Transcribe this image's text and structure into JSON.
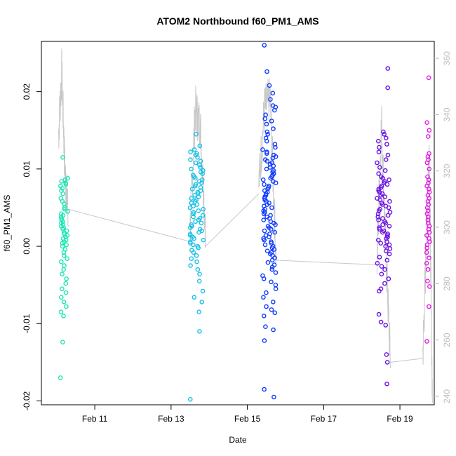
{
  "chart_data": {
    "type": "scatter",
    "title": "ATOM2 Northbound f60_PM1_AMS",
    "xlabel": "Date",
    "ylabel": "f60_PM1_AMS",
    "x_axis": {
      "range_days": [
        9.6,
        19.9
      ],
      "ticks": [
        {
          "day": 11,
          "label": "Feb 11"
        },
        {
          "day": 13,
          "label": "Feb 13"
        },
        {
          "day": 15,
          "label": "Feb 15"
        },
        {
          "day": 17,
          "label": "Feb 17"
        },
        {
          "day": 19,
          "label": "Feb 19"
        }
      ]
    },
    "y_left": {
      "range": [
        -0.0205,
        0.0265
      ],
      "ticks": [
        {
          "value": -0.02,
          "label": "-0.02"
        },
        {
          "value": -0.01,
          "label": "-0.01"
        },
        {
          "value": 0.0,
          "label": "0.00"
        },
        {
          "value": 0.01,
          "label": "0.01"
        },
        {
          "value": 0.02,
          "label": "0.02"
        }
      ]
    },
    "y_right": {
      "color": "#bdbdbd",
      "range": [
        237,
        366
      ],
      "ticks": [
        {
          "value": 240,
          "label": "240"
        },
        {
          "value": 260,
          "label": "260"
        },
        {
          "value": 280,
          "label": "280"
        },
        {
          "value": 300,
          "label": "300"
        },
        {
          "value": 320,
          "label": "320"
        },
        {
          "value": 340,
          "label": "340"
        },
        {
          "value": 360,
          "label": "360"
        }
      ]
    },
    "grid": false,
    "legend": "none",
    "marker": "open-circle",
    "line_color": "#c8c8c8",
    "point_groups": [
      {
        "color": "#1ee6b4",
        "x_span": [
          10.1,
          10.3
        ],
        "points": [
          0.0115,
          0.0088,
          0.0086,
          0.0084,
          0.0082,
          0.008,
          0.0078,
          0.0075,
          0.0072,
          0.0068,
          0.0062,
          0.0058,
          0.0055,
          0.005,
          0.0048,
          0.0045,
          0.0042,
          0.004,
          0.0038,
          0.0036,
          0.0034,
          0.0032,
          0.003,
          0.0028,
          0.0026,
          0.0024,
          0.0022,
          0.002,
          0.0018,
          0.0016,
          0.0014,
          0.0012,
          0.001,
          0.0008,
          0.0006,
          0.0004,
          0.0002,
          0.0,
          -0.0004,
          -0.0008,
          -0.0012,
          -0.0016,
          -0.002,
          -0.0025,
          -0.003,
          -0.0036,
          -0.0042,
          -0.0048,
          -0.0055,
          -0.006,
          -0.0066,
          -0.0072,
          -0.0078,
          -0.0085,
          -0.009,
          -0.0124,
          -0.017
        ]
      },
      {
        "color": "#19c1e6",
        "x_span": [
          13.5,
          13.85
        ],
        "points": [
          0.0145,
          0.013,
          0.0125,
          0.0122,
          0.012,
          0.0118,
          0.0115,
          0.0112,
          0.011,
          0.0108,
          0.0105,
          0.0102,
          0.01,
          0.0098,
          0.0096,
          0.0094,
          0.0092,
          0.009,
          0.0088,
          0.0086,
          0.0084,
          0.0082,
          0.008,
          0.0078,
          0.0076,
          0.0074,
          0.0072,
          0.007,
          0.0068,
          0.0066,
          0.0064,
          0.0062,
          0.006,
          0.0058,
          0.0056,
          0.0054,
          0.0052,
          0.005,
          0.0048,
          0.0046,
          0.0044,
          0.0042,
          0.004,
          0.0038,
          0.0036,
          0.0034,
          0.0032,
          0.003,
          0.0028,
          0.0026,
          0.0024,
          0.0022,
          0.002,
          0.0018,
          0.0016,
          0.0014,
          0.0012,
          0.001,
          0.0008,
          0.0006,
          0.0004,
          0.0002,
          0.0,
          -0.0002,
          -0.0005,
          -0.0008,
          -0.0012,
          -0.0016,
          -0.002,
          -0.0025,
          -0.003,
          -0.0036,
          -0.0045,
          -0.0058,
          -0.0066,
          -0.0072,
          -0.0085,
          -0.011,
          -0.0198
        ]
      },
      {
        "color": "#0f3cff",
        "x_span": [
          15.4,
          15.75
        ],
        "points": [
          0.026,
          0.0226,
          0.0208,
          0.0198,
          0.019,
          0.0182,
          0.018,
          0.0176,
          0.017,
          0.0165,
          0.0162,
          0.0158,
          0.0152,
          0.0148,
          0.0145,
          0.014,
          0.0136,
          0.0132,
          0.0128,
          0.0125,
          0.0122,
          0.012,
          0.0118,
          0.0116,
          0.0114,
          0.0112,
          0.011,
          0.0108,
          0.0106,
          0.0104,
          0.0102,
          0.01,
          0.0098,
          0.0096,
          0.0094,
          0.0092,
          0.009,
          0.0088,
          0.0086,
          0.0084,
          0.0082,
          0.008,
          0.0078,
          0.0076,
          0.0074,
          0.0072,
          0.007,
          0.0068,
          0.0066,
          0.0064,
          0.0062,
          0.006,
          0.0058,
          0.0056,
          0.0054,
          0.0052,
          0.005,
          0.0048,
          0.0046,
          0.0044,
          0.0042,
          0.004,
          0.0038,
          0.0036,
          0.0034,
          0.0032,
          0.003,
          0.0028,
          0.0026,
          0.0024,
          0.0022,
          0.002,
          0.0018,
          0.0016,
          0.0014,
          0.0012,
          0.001,
          0.0008,
          0.0006,
          0.0004,
          0.0002,
          0.0,
          -0.0002,
          -0.0004,
          -0.0006,
          -0.0008,
          -0.001,
          -0.0012,
          -0.0015,
          -0.0018,
          -0.0021,
          -0.0024,
          -0.0027,
          -0.003,
          -0.0034,
          -0.0038,
          -0.0042,
          -0.0046,
          -0.005,
          -0.0055,
          -0.006,
          -0.0066,
          -0.0072,
          -0.0078,
          -0.0082,
          -0.0086,
          -0.009,
          -0.0104,
          -0.0108,
          -0.0122,
          -0.0185,
          -0.0195
        ]
      },
      {
        "color": "#6a0fe6",
        "x_span": [
          18.4,
          18.75
        ],
        "points": [
          0.023,
          0.0205,
          0.0148,
          0.0145,
          0.014,
          0.0136,
          0.0132,
          0.0128,
          0.0122,
          0.0118,
          0.0112,
          0.0108,
          0.0102,
          0.0098,
          0.0094,
          0.009,
          0.0088,
          0.0086,
          0.0084,
          0.0082,
          0.008,
          0.0078,
          0.0076,
          0.0074,
          0.0072,
          0.007,
          0.0068,
          0.0066,
          0.0064,
          0.0062,
          0.006,
          0.0058,
          0.0056,
          0.0054,
          0.0052,
          0.005,
          0.0048,
          0.0046,
          0.0044,
          0.0042,
          0.004,
          0.0038,
          0.0036,
          0.0034,
          0.0032,
          0.003,
          0.0028,
          0.0026,
          0.0024,
          0.0022,
          0.002,
          0.0018,
          0.0016,
          0.0014,
          0.0012,
          0.001,
          0.0008,
          0.0006,
          0.0004,
          0.0002,
          0.0,
          -0.0003,
          -0.0006,
          -0.001,
          -0.0014,
          -0.0018,
          -0.0022,
          -0.0026,
          -0.003,
          -0.0036,
          -0.0042,
          -0.0048,
          -0.0055,
          -0.0058,
          -0.0088,
          -0.0098,
          -0.0102,
          -0.014,
          -0.015,
          -0.0178
        ]
      },
      {
        "color": "#e619e6",
        "x_span": [
          19.7,
          19.78
        ],
        "points": [
          0.0218,
          0.016,
          0.015,
          0.0142,
          0.012,
          0.0116,
          0.0112,
          0.0108,
          0.01,
          0.009,
          0.0086,
          0.0082,
          0.0078,
          0.0074,
          0.007,
          0.0066,
          0.0062,
          0.0058,
          0.0054,
          0.005,
          0.0046,
          0.0042,
          0.0038,
          0.0034,
          0.003,
          0.0026,
          0.0022,
          0.0018,
          0.0014,
          0.001,
          0.0006,
          0.0002,
          -0.0002,
          -0.0008,
          -0.0015,
          -0.0022,
          -0.003,
          -0.0045,
          -0.0052,
          -0.0078,
          -0.0123
        ]
      }
    ],
    "right_axis_line_summary": [
      {
        "x_span": [
          10.05,
          10.3
        ],
        "right_values": [
          333,
          355,
          320,
          305
        ]
      },
      {
        "x_span": [
          13.5,
          13.9
        ],
        "right_values": [
          300,
          342,
          336,
          300
        ]
      },
      {
        "x_span": [
          15.3,
          15.75
        ],
        "right_values": [
          315,
          342,
          345,
          290
        ]
      },
      {
        "x_span": [
          18.4,
          18.75
        ],
        "right_values": [
          288,
          338,
          290,
          253
        ]
      },
      {
        "x_span": [
          19.6,
          19.85
        ],
        "right_values": [
          255,
          290,
          330,
          240
        ]
      }
    ],
    "connector_lines": [
      {
        "from_day": 10.3,
        "to_day": 13.5,
        "from_left_value": 0.0048,
        "to_left_value": 0.0006
      },
      {
        "from_day": 13.9,
        "to_day": 15.3,
        "from_left_value": 0.0,
        "to_left_value": 0.0068
      },
      {
        "from_day": 15.75,
        "to_day": 18.4,
        "from_left_value": -0.0018,
        "to_left_value": -0.0024
      },
      {
        "from_day": 18.75,
        "to_day": 19.6,
        "from_left_value": -0.015,
        "to_left_value": -0.0145
      }
    ]
  }
}
